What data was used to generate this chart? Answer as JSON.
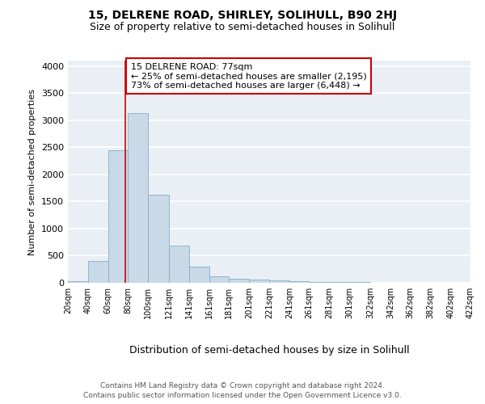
{
  "title1": "15, DELRENE ROAD, SHIRLEY, SOLIHULL, B90 2HJ",
  "title2": "Size of property relative to semi-detached houses in Solihull",
  "xlabel": "Distribution of semi-detached houses by size in Solihull",
  "ylabel": "Number of semi-detached properties",
  "footnote1": "Contains HM Land Registry data © Crown copyright and database right 2024.",
  "footnote2": "Contains public sector information licensed under the Open Government Licence v3.0.",
  "property_label": "15 DELRENE ROAD: 77sqm",
  "annotation_line1": "← 25% of semi-detached houses are smaller (2,195)",
  "annotation_line2": "73% of semi-detached houses are larger (6,448) →",
  "bin_edges": [
    20,
    40,
    60,
    80,
    100,
    121,
    141,
    161,
    181,
    201,
    221,
    241,
    261,
    281,
    301,
    322,
    342,
    362,
    382,
    402,
    422
  ],
  "bar_heights": [
    30,
    400,
    2440,
    3130,
    1620,
    680,
    300,
    120,
    70,
    55,
    50,
    30,
    20,
    10,
    8,
    5,
    5,
    4,
    3,
    2
  ],
  "bar_color": "#c9d9e8",
  "bar_edgecolor": "#7fafc8",
  "vline_x": 77,
  "vline_color": "#cc0000",
  "box_color": "#cc0000",
  "ylim": [
    0,
    4100
  ],
  "yticks": [
    0,
    500,
    1000,
    1500,
    2000,
    2500,
    3000,
    3500,
    4000
  ],
  "xtick_labels": [
    "20sqm",
    "40sqm",
    "60sqm",
    "80sqm",
    "100sqm",
    "121sqm",
    "141sqm",
    "161sqm",
    "181sqm",
    "201sqm",
    "221sqm",
    "241sqm",
    "261sqm",
    "281sqm",
    "301sqm",
    "322sqm",
    "342sqm",
    "362sqm",
    "382sqm",
    "402sqm",
    "422sqm"
  ],
  "bg_color": "#eaeff5",
  "grid_color": "#ffffff",
  "title1_fontsize": 10,
  "title2_fontsize": 9,
  "ylabel_fontsize": 8,
  "xlabel_fontsize": 9,
  "ytick_fontsize": 8,
  "xtick_fontsize": 7,
  "footnote_fontsize": 6.5,
  "annotation_fontsize": 8
}
